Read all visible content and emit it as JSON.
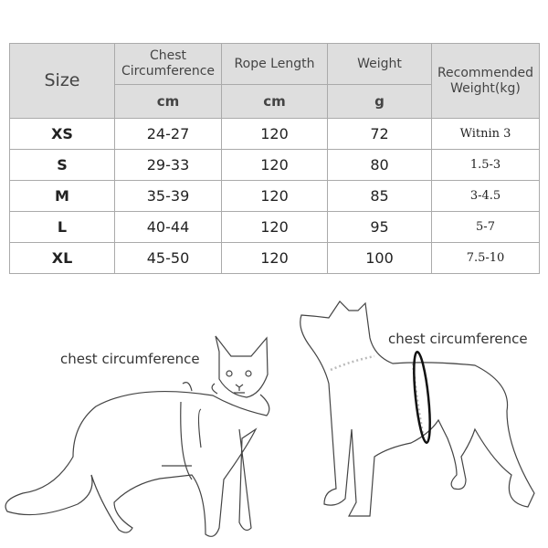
{
  "headers": {
    "size": "Size",
    "chest": "Chest Circumference",
    "rope": "Rope Length",
    "weight": "Weight",
    "recommended": "Recommended Weight(kg)"
  },
  "units": {
    "chest": "cm",
    "rope": "cm",
    "weight": "g"
  },
  "rows": [
    {
      "size": "XS",
      "chest": "24-27",
      "rope": "120",
      "weight": "72",
      "recommended": "Witnin 3"
    },
    {
      "size": "S",
      "chest": "29-33",
      "rope": "120",
      "weight": "80",
      "recommended": "1.5-3"
    },
    {
      "size": "M",
      "chest": "35-39",
      "rope": "120",
      "weight": "85",
      "recommended": "3-4.5"
    },
    {
      "size": "L",
      "chest": "40-44",
      "rope": "120",
      "weight": "95",
      "recommended": "5-7"
    },
    {
      "size": "XL",
      "chest": "45-50",
      "rope": "120",
      "weight": "100",
      "recommended": "7.5-10"
    }
  ],
  "illustration": {
    "cat_label": "chest circumference",
    "dog_label": "chest circumference"
  }
}
